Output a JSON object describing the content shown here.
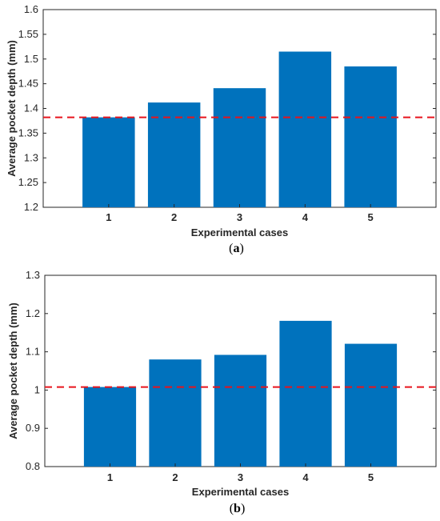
{
  "colors": {
    "bar": "#0072BD",
    "reference_line": "#E8141C",
    "axis": "#262626"
  },
  "chart_data": [
    {
      "type": "bar",
      "panel_label": "a",
      "categories": [
        "1",
        "2",
        "3",
        "4",
        "5"
      ],
      "values": [
        1.382,
        1.412,
        1.441,
        1.515,
        1.485
      ],
      "reference_line": 1.382,
      "xlabel": "Experimental cases",
      "ylabel": "Average pocket depth (mm)",
      "ylim": [
        1.2,
        1.6
      ],
      "yticks": [
        "1.2",
        "1.25",
        "1.3",
        "1.35",
        "1.4",
        "1.45",
        "1.5",
        "1.55",
        "1.6"
      ],
      "xlim": [
        0,
        6
      ],
      "grid": false
    },
    {
      "type": "bar",
      "panel_label": "b",
      "categories": [
        "1",
        "2",
        "3",
        "4",
        "5"
      ],
      "values": [
        1.008,
        1.08,
        1.092,
        1.181,
        1.121
      ],
      "reference_line": 1.008,
      "xlabel": "Experimental cases",
      "ylabel": "Average pocket depth (mm)",
      "ylim": [
        0.8,
        1.3
      ],
      "yticks": [
        "0.8",
        "0.9",
        "1",
        "1.1",
        "1.2",
        "1.3"
      ],
      "xlim": [
        0,
        6
      ],
      "grid": false
    }
  ]
}
